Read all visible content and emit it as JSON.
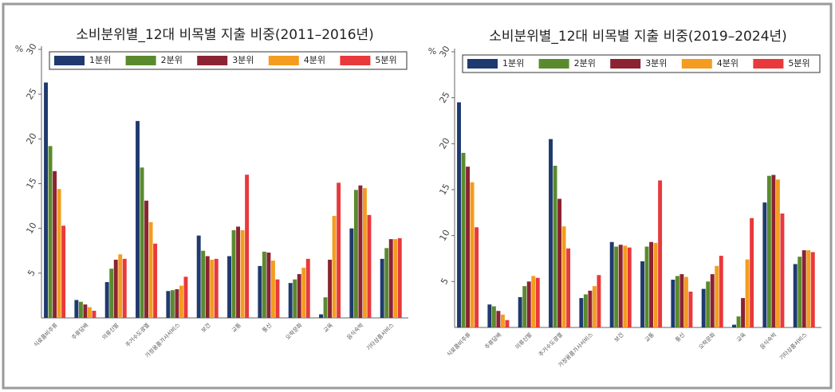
{
  "chart_data": [
    {
      "type": "bar",
      "title": "소비분위별_12대 비목별 지출 비중(2011–2016년)",
      "y_label": "%",
      "categories": [
        "식료품비주류",
        "주류담배",
        "의류신발",
        "주거수도광열",
        "가정용품가사서비스",
        "보건",
        "교통",
        "통신",
        "오락문화",
        "교육",
        "음식숙박",
        "기타상품서비스"
      ],
      "series": [
        {
          "name": "1분위",
          "color": "#1f3a6e",
          "values": [
            26.3,
            2.0,
            4.0,
            22.0,
            3.0,
            9.2,
            6.9,
            5.8,
            3.9,
            0.4,
            10.0,
            6.6
          ]
        },
        {
          "name": "2분위",
          "color": "#5a8a2e",
          "values": [
            19.2,
            1.8,
            5.5,
            16.8,
            3.1,
            7.5,
            9.8,
            7.4,
            4.3,
            2.3,
            14.3,
            7.8
          ]
        },
        {
          "name": "3분위",
          "color": "#8b2333",
          "values": [
            16.4,
            1.5,
            6.5,
            13.1,
            3.2,
            6.9,
            10.2,
            7.3,
            4.9,
            6.5,
            14.8,
            8.8
          ]
        },
        {
          "name": "4분위",
          "color": "#f39c1f",
          "values": [
            14.4,
            1.2,
            7.1,
            10.7,
            3.6,
            6.5,
            9.8,
            6.4,
            5.6,
            11.4,
            14.5,
            8.8
          ]
        },
        {
          "name": "5분위",
          "color": "#e8393c",
          "values": [
            10.3,
            0.8,
            6.6,
            8.3,
            4.6,
            6.6,
            16.0,
            4.3,
            6.6,
            15.1,
            11.5,
            8.9
          ]
        }
      ],
      "ylim": [
        0,
        30
      ],
      "yticks": [
        5,
        10,
        15,
        20,
        25,
        30
      ],
      "legend": "top",
      "grid": false
    },
    {
      "type": "bar",
      "title": "소비분위별_12대 비목별 지출 비중(2019–2024년)",
      "y_label": "%",
      "categories": [
        "식료품비주류",
        "주류담배",
        "의류신발",
        "주거수도광열",
        "가정용품가사서비스",
        "보건",
        "교통",
        "통신",
        "오락문화",
        "교육",
        "음식숙박",
        "기타상품서비스"
      ],
      "series": [
        {
          "name": "1분위",
          "color": "#1f3a6e",
          "values": [
            24.5,
            2.5,
            3.3,
            20.5,
            3.2,
            9.3,
            7.2,
            5.2,
            4.2,
            0.3,
            13.6,
            6.9
          ]
        },
        {
          "name": "2분위",
          "color": "#5a8a2e",
          "values": [
            19.0,
            2.3,
            4.5,
            17.6,
            3.6,
            8.8,
            8.8,
            5.6,
            5.0,
            1.2,
            16.5,
            7.7
          ]
        },
        {
          "name": "3분위",
          "color": "#8b2333",
          "values": [
            17.5,
            1.8,
            5.0,
            14.0,
            4.0,
            9.0,
            9.3,
            5.8,
            5.8,
            3.2,
            16.6,
            8.4
          ]
        },
        {
          "name": "4분위",
          "color": "#f39c1f",
          "values": [
            15.8,
            1.4,
            5.6,
            11.0,
            4.5,
            8.9,
            9.2,
            5.5,
            6.7,
            7.4,
            16.1,
            8.4
          ]
        },
        {
          "name": "5분위",
          "color": "#e8393c",
          "values": [
            10.9,
            0.8,
            5.4,
            8.6,
            5.7,
            8.7,
            16.0,
            3.9,
            7.8,
            11.9,
            12.4,
            8.2
          ]
        }
      ],
      "ylim": [
        0,
        30
      ],
      "yticks": [
        5,
        10,
        15,
        20,
        25,
        30
      ],
      "legend": "top",
      "grid": false
    }
  ]
}
